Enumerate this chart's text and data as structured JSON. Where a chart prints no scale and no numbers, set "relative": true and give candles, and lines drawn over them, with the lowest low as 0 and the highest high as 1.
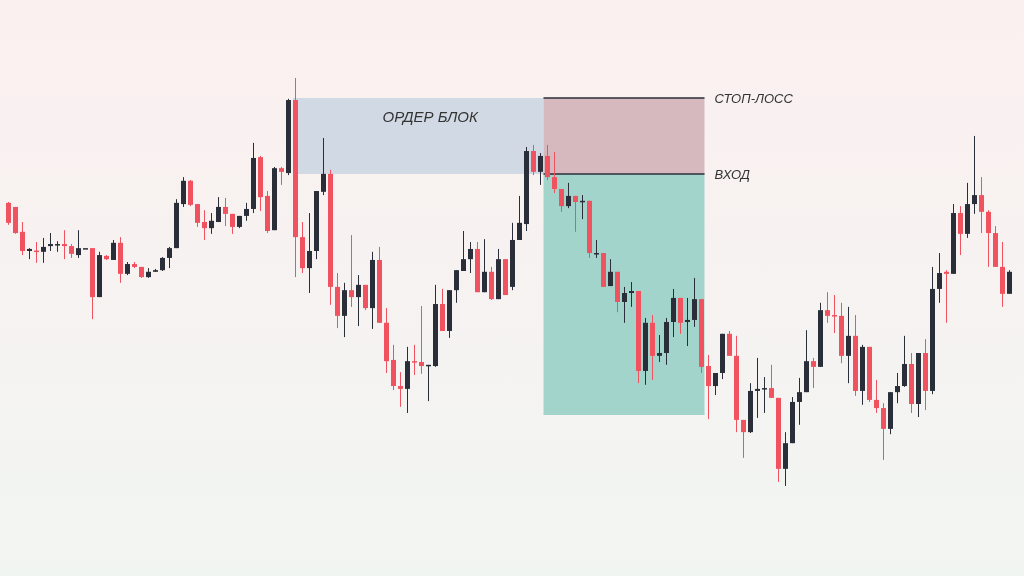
{
  "chart_data": {
    "type": "candlestick",
    "relative": true,
    "categories": [
      null,
      null,
      null,
      null,
      null,
      null,
      null,
      null,
      null,
      null,
      null,
      null,
      null,
      null,
      null,
      null,
      null,
      null,
      null,
      null,
      null,
      null,
      null,
      null,
      null,
      null,
      null,
      null,
      null,
      null,
      null,
      null,
      null,
      null,
      null,
      null,
      null,
      null,
      null,
      null,
      null,
      null,
      null,
      null,
      null,
      null,
      null,
      null,
      null,
      null,
      null,
      null,
      null,
      null,
      null,
      null,
      null,
      null,
      null,
      null,
      null,
      null,
      null,
      null,
      null,
      null,
      null,
      null,
      null,
      null,
      null,
      null,
      null,
      null,
      null,
      null,
      null,
      null,
      null,
      null,
      null,
      null,
      null,
      null,
      null,
      null,
      null,
      null,
      null,
      null,
      null,
      null,
      null,
      null,
      null,
      null,
      null,
      null,
      null,
      null,
      null,
      null,
      null,
      null,
      null,
      null,
      null,
      null,
      null,
      null,
      null,
      null,
      null,
      null,
      null,
      null,
      null,
      null,
      null,
      null,
      null,
      null,
      null,
      null,
      null,
      null,
      null,
      null,
      null,
      null,
      null,
      null,
      null,
      null,
      null,
      null,
      null,
      null,
      null,
      null,
      null,
      null,
      null,
      null
    ],
    "ohlc": [
      [
        0.694,
        0.696,
        0.64,
        0.645
      ],
      [
        0.684,
        0.684,
        0.618,
        0.62
      ],
      [
        0.623,
        0.647,
        0.566,
        0.576
      ],
      [
        0.576,
        0.583,
        0.556,
        0.581
      ],
      [
        0.577,
        0.598,
        0.547,
        0.575
      ],
      [
        0.574,
        0.608,
        0.547,
        0.586
      ],
      [
        0.588,
        0.62,
        0.576,
        0.593
      ],
      [
        0.591,
        0.6,
        0.574,
        0.593
      ],
      [
        0.593,
        0.627,
        0.556,
        0.588
      ],
      [
        0.588,
        0.593,
        0.559,
        0.569
      ],
      [
        0.566,
        0.627,
        0.559,
        0.583
      ],
      [
        0.583,
        0.583,
        0.583,
        0.583
      ],
      [
        0.583,
        0.583,
        0.409,
        0.463
      ],
      [
        0.463,
        0.574,
        0.463,
        0.566
      ],
      [
        0.564,
        0.566,
        0.554,
        0.556
      ],
      [
        0.554,
        0.603,
        0.554,
        0.596
      ],
      [
        0.596,
        0.61,
        0.498,
        0.52
      ],
      [
        0.52,
        0.549,
        0.517,
        0.544
      ],
      [
        0.544,
        0.549,
        0.534,
        0.537
      ],
      [
        0.537,
        0.537,
        0.51,
        0.512
      ],
      [
        0.512,
        0.534,
        0.51,
        0.525
      ],
      [
        0.525,
        0.532,
        0.525,
        0.529
      ],
      [
        0.529,
        0.561,
        0.527,
        0.559
      ],
      [
        0.559,
        0.586,
        0.534,
        0.583
      ],
      [
        0.583,
        0.703,
        0.583,
        0.694
      ],
      [
        0.691,
        0.757,
        0.684,
        0.748
      ],
      [
        0.748,
        0.75,
        0.686,
        0.689
      ],
      [
        0.691,
        0.691,
        0.635,
        0.645
      ],
      [
        0.647,
        0.676,
        0.603,
        0.632
      ],
      [
        0.632,
        0.669,
        0.618,
        0.65
      ],
      [
        0.647,
        0.708,
        0.647,
        0.684
      ],
      [
        0.684,
        0.706,
        0.637,
        0.667
      ],
      [
        0.667,
        0.667,
        0.618,
        0.635
      ],
      [
        0.635,
        0.662,
        0.632,
        0.662
      ],
      [
        0.662,
        0.694,
        0.65,
        0.679
      ],
      [
        0.679,
        0.841,
        0.669,
        0.804
      ],
      [
        0.806,
        0.809,
        0.674,
        0.708
      ],
      [
        0.711,
        0.723,
        0.62,
        0.625
      ],
      [
        0.627,
        0.782,
        0.627,
        0.779
      ],
      [
        0.779,
        0.782,
        0.738,
        0.77
      ],
      [
        0.767,
        0.949,
        0.762,
        0.946
      ],
      [
        0.946,
        1,
        0.512,
        0.61
      ],
      [
        0.61,
        0.647,
        0.522,
        0.534
      ],
      [
        0.534,
        0.669,
        0.473,
        0.576
      ],
      [
        0.576,
        0.723,
        0.556,
        0.723
      ],
      [
        0.721,
        0.853,
        0.713,
        0.765
      ],
      [
        0.765,
        0.775,
        0.444,
        0.488
      ],
      [
        0.488,
        0.522,
        0.387,
        0.417
      ],
      [
        0.417,
        0.498,
        0.365,
        0.48
      ],
      [
        0.48,
        0.615,
        0.439,
        0.463
      ],
      [
        0.463,
        0.517,
        0.392,
        0.493
      ],
      [
        0.493,
        0.493,
        0.431,
        0.436
      ],
      [
        0.436,
        0.574,
        0.385,
        0.554
      ],
      [
        0.554,
        0.586,
        0.4,
        0.4
      ],
      [
        0.4,
        0.436,
        0.277,
        0.306
      ],
      [
        0.309,
        0.346,
        0.235,
        0.245
      ],
      [
        0.245,
        0.279,
        0.194,
        0.238
      ],
      [
        0.238,
        0.341,
        0.179,
        0.306
      ],
      [
        0.306,
        0.346,
        0.272,
        0.304
      ],
      [
        0.304,
        0.441,
        0.275,
        0.294
      ],
      [
        0.294,
        0.297,
        0.208,
        0.297
      ],
      [
        0.294,
        0.493,
        0.292,
        0.446
      ],
      [
        0.446,
        0.483,
        0.38,
        0.38
      ],
      [
        0.38,
        0.48,
        0.363,
        0.48
      ],
      [
        0.48,
        0.529,
        0.449,
        0.529
      ],
      [
        0.527,
        0.625,
        0.527,
        0.556
      ],
      [
        0.556,
        0.598,
        0.522,
        0.581
      ],
      [
        0.581,
        0.598,
        0.475,
        0.475
      ],
      [
        0.475,
        0.605,
        0.475,
        0.525
      ],
      [
        0.525,
        0.537,
        0.456,
        0.458
      ],
      [
        0.458,
        0.581,
        0.458,
        0.556
      ],
      [
        0.556,
        0.556,
        0.468,
        0.468
      ],
      [
        0.488,
        0.645,
        0.48,
        0.603
      ],
      [
        0.603,
        0.711,
        0.603,
        0.645
      ],
      [
        0.642,
        0.831,
        0.625,
        0.821
      ],
      [
        0.821,
        0.836,
        0.762,
        0.77
      ],
      [
        0.77,
        0.816,
        0.738,
        0.809
      ],
      [
        0.809,
        0.836,
        0.75,
        0.757
      ],
      [
        0.757,
        0.819,
        0.718,
        0.728
      ],
      [
        0.728,
        0.728,
        0.672,
        0.686
      ],
      [
        0.686,
        0.743,
        0.681,
        0.711
      ],
      [
        0.711,
        0.711,
        0.623,
        0.696
      ],
      [
        0.696,
        0.713,
        0.654,
        0.699
      ],
      [
        0.699,
        0.699,
        0.559,
        0.571
      ],
      [
        0.57,
        0.603,
        0.559,
        0.571
      ],
      [
        0.571,
        0.571,
        0.488,
        0.488
      ],
      [
        0.49,
        0.556,
        0.49,
        0.525
      ],
      [
        0.525,
        0.525,
        0.426,
        0.451
      ],
      [
        0.451,
        0.488,
        0.4,
        0.473
      ],
      [
        0.473,
        0.5,
        0.439,
        0.478
      ],
      [
        0.478,
        0.478,
        0.252,
        0.282
      ],
      [
        0.282,
        0.412,
        0.248,
        0.4
      ],
      [
        0.4,
        0.419,
        0.26,
        0.319
      ],
      [
        0.319,
        0.37,
        0.304,
        0.326
      ],
      [
        0.326,
        0.412,
        0.297,
        0.402
      ],
      [
        0.402,
        0.483,
        0.365,
        0.461
      ],
      [
        0.461,
        0.461,
        0.373,
        0.4
      ],
      [
        0.402,
        0.461,
        0.343,
        0.407
      ],
      [
        0.407,
        0.51,
        0.39,
        0.458
      ],
      [
        0.458,
        0.458,
        0.277,
        0.292
      ],
      [
        0.294,
        0.321,
        0.164,
        0.245
      ],
      [
        0.245,
        0.277,
        0.223,
        0.277
      ],
      [
        0.277,
        0.373,
        0.262,
        0.373
      ],
      [
        0.373,
        0.38,
        0.319,
        0.319
      ],
      [
        0.319,
        0.368,
        0.132,
        0.162
      ],
      [
        0.162,
        0.162,
        0.069,
        0.132
      ],
      [
        0.132,
        0.252,
        0.13,
        0.233
      ],
      [
        0.233,
        0.314,
        0.167,
        0.238
      ],
      [
        0.239,
        0.267,
        0.179,
        0.24
      ],
      [
        0.24,
        0.297,
        0.216,
        0.216
      ],
      [
        0.216,
        0.216,
        0.01,
        0.042
      ],
      [
        0.042,
        0.132,
        0,
        0.105
      ],
      [
        0.105,
        0.218,
        0.105,
        0.206
      ],
      [
        0.206,
        0.265,
        0.15,
        0.23
      ],
      [
        0.23,
        0.382,
        0.23,
        0.306
      ],
      [
        0.306,
        0.314,
        0.24,
        0.292
      ],
      [
        0.292,
        0.449,
        0.292,
        0.431
      ],
      [
        0.431,
        0.475,
        0.4,
        0.417
      ],
      [
        0.419,
        0.468,
        0.375,
        0.417
      ],
      [
        0.417,
        0.449,
        0.301,
        0.319
      ],
      [
        0.319,
        0.439,
        0.252,
        0.368
      ],
      [
        0.368,
        0.419,
        0.221,
        0.233
      ],
      [
        0.233,
        0.346,
        0.199,
        0.341
      ],
      [
        0.341,
        0.341,
        0.206,
        0.211
      ],
      [
        0.211,
        0.26,
        0.179,
        0.191
      ],
      [
        0.191,
        0.203,
        0.064,
        0.14
      ],
      [
        0.14,
        0.23,
        0.127,
        0.23
      ],
      [
        0.23,
        0.277,
        0.203,
        0.245
      ],
      [
        0.245,
        0.368,
        0.243,
        0.299
      ],
      [
        0.299,
        0.326,
        0.179,
        0.201
      ],
      [
        0.201,
        0.326,
        0.169,
        0.326
      ],
      [
        0.326,
        0.36,
        0.186,
        0.233
      ],
      [
        0.233,
        0.537,
        0.225,
        0.483
      ],
      [
        0.483,
        0.571,
        0.449,
        0.522
      ],
      [
        0.525,
        0.529,
        0.4,
        0.52
      ],
      [
        0.52,
        0.691,
        0.52,
        0.669
      ],
      [
        0.669,
        0.686,
        0.566,
        0.618
      ],
      [
        0.618,
        0.743,
        0.608,
        0.691
      ],
      [
        0.691,
        0.858,
        0.667,
        0.713
      ],
      [
        0.713,
        0.757,
        0.62,
        0.672
      ],
      [
        0.672,
        0.676,
        0.537,
        0.62
      ],
      [
        0.62,
        0.637,
        0.537,
        0.537
      ],
      [
        0.537,
        0.598,
        0.439,
        0.471
      ],
      [
        0.471,
        0.529,
        0.471,
        0.525
      ]
    ],
    "colors": [
      "#f0525f",
      "#f0525f",
      "#f0525f",
      "#2a2e39",
      "#f0525f",
      "#2a2e39",
      "#2a2e39",
      "#2a2e39",
      "#f0525f",
      "#f0525f",
      "#2a2e39",
      "#2a2e39",
      "#f0525f",
      "#2a2e39",
      "#f0525f",
      "#2a2e39",
      "#f0525f",
      "#2a2e39",
      "#f0525f",
      "#f0525f",
      "#2a2e39",
      "#2a2e39",
      "#2a2e39",
      "#2a2e39",
      "#2a2e39",
      "#2a2e39",
      "#f0525f",
      "#f0525f",
      "#f0525f",
      "#2a2e39",
      "#2a2e39",
      "#f0525f",
      "#f0525f",
      "#2a2e39",
      "#2a2e39",
      "#2a2e39",
      "#f0525f",
      "#f0525f",
      "#2a2e39",
      "#f0525f",
      "#2a2e39",
      "#f0525f",
      "#f0525f",
      "#2a2e39",
      "#2a2e39",
      "#2a2e39",
      "#f0525f",
      "#f0525f",
      "#2a2e39",
      "#f0525f",
      "#2a2e39",
      "#f0525f",
      "#2a2e39",
      "#f0525f",
      "#f0525f",
      "#f0525f",
      "#f0525f",
      "#2a2e39",
      "#f0525f",
      "#f0525f",
      "#2a2e39",
      "#2a2e39",
      "#f0525f",
      "#2a2e39",
      "#2a2e39",
      "#2a2e39",
      "#2a2e39",
      "#f0525f",
      "#2a2e39",
      "#f0525f",
      "#2a2e39",
      "#f0525f",
      "#2a2e39",
      "#2a2e39",
      "#2a2e39",
      "#f0525f",
      "#2a2e39",
      "#f0525f",
      "#f0525f",
      "#f0525f",
      "#2a2e39",
      "#f0525f",
      "#2a2e39",
      "#f0525f",
      "#2a2e39",
      "#f0525f",
      "#2a2e39",
      "#f0525f",
      "#2a2e39",
      "#2a2e39",
      "#f0525f",
      "#2a2e39",
      "#f0525f",
      "#2a2e39",
      "#2a2e39",
      "#2a2e39",
      "#f0525f",
      "#2a2e39",
      "#2a2e39",
      "#f0525f",
      "#f0525f",
      "#2a2e39",
      "#2a2e39",
      "#f0525f",
      "#f0525f",
      "#f0525f",
      "#2a2e39",
      "#2a2e39",
      "#2a2e39",
      "#f0525f",
      "#f0525f",
      "#2a2e39",
      "#2a2e39",
      "#2a2e39",
      "#2a2e39",
      "#f0525f",
      "#2a2e39",
      "#f0525f",
      "#f0525f",
      "#f0525f",
      "#2a2e39",
      "#f0525f",
      "#2a2e39",
      "#f0525f",
      "#f0525f",
      "#f0525f",
      "#2a2e39",
      "#2a2e39",
      "#2a2e39",
      "#f0525f",
      "#2a2e39",
      "#f0525f",
      "#2a2e39",
      "#2a2e39",
      "#f0525f",
      "#2a2e39",
      "#f0525f",
      "#2a2e39",
      "#2a2e39",
      "#f0525f",
      "#f0525f",
      "#f0525f",
      "#f0525f",
      "#2a2e39"
    ],
    "bands": [
      {
        "axis": "y",
        "from": 0.765,
        "to": 0.951,
        "label": "ОРДЕР БЛОК",
        "color": "#d1dae4"
      },
      {
        "axis": "y",
        "from": 0.765,
        "to": 0.951,
        "color": "#d6b9bf"
      },
      {
        "axis": "y",
        "from": 0.174,
        "to": 0.765,
        "color": "#a3d4cc"
      }
    ],
    "ref_lines": [
      {
        "axis": "y",
        "value": 0.951,
        "label": "СТОП-ЛОСС",
        "color": "#2a2e39"
      },
      {
        "axis": "y",
        "value": 0.765,
        "label": "ВХОД",
        "color": "#2a2e39"
      }
    ]
  }
}
